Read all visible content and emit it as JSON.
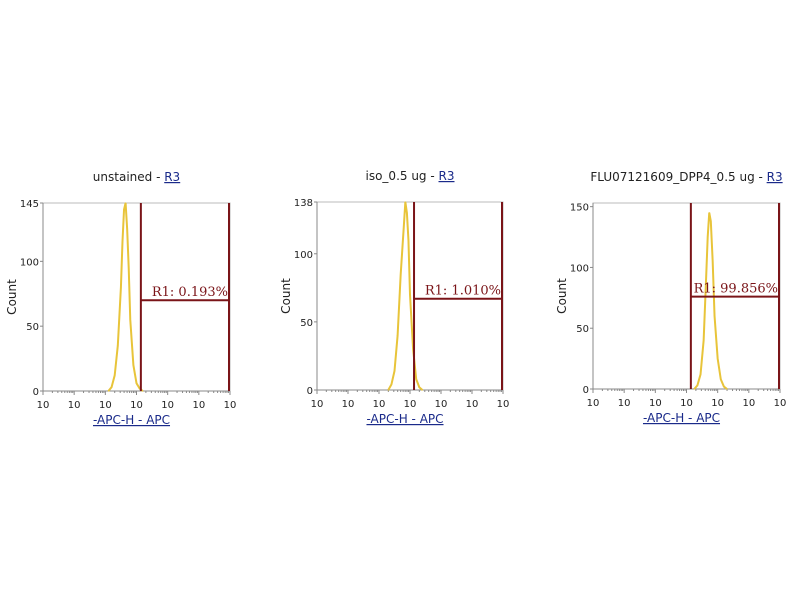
{
  "colors": {
    "histogram": "#e8c43a",
    "gate": "#7a1418",
    "axis": "#888888",
    "link": "#1a2a8a"
  },
  "chart_data": [
    {
      "type": "histogram",
      "title": "unstained - ",
      "title_link": "R3",
      "xlabel": "-APC-H - APC",
      "ylabel": "Count",
      "x_scale": "log",
      "xlim_decades": [
        0,
        6
      ],
      "xtick_labels": [
        "10",
        "10",
        "10",
        "10",
        "10",
        "10",
        "10"
      ],
      "ylim": [
        0,
        145
      ],
      "yticks": [
        0,
        50,
        100,
        145
      ],
      "gate": {
        "name": "R1",
        "label": "R1: 0.193%",
        "lo_decade": 3.14,
        "hi_decade": 6,
        "level": 70
      },
      "points": [
        [
          2.1,
          0
        ],
        [
          2.2,
          3
        ],
        [
          2.3,
          12
        ],
        [
          2.4,
          35
        ],
        [
          2.5,
          80
        ],
        [
          2.55,
          115
        ],
        [
          2.6,
          140
        ],
        [
          2.65,
          145
        ],
        [
          2.7,
          125
        ],
        [
          2.75,
          95
        ],
        [
          2.8,
          55
        ],
        [
          2.9,
          20
        ],
        [
          3.0,
          6
        ],
        [
          3.1,
          2
        ],
        [
          3.2,
          0
        ]
      ]
    },
    {
      "type": "histogram",
      "title": "iso_0.5 ug - ",
      "title_link": "R3",
      "xlabel": "-APC-H - APC",
      "ylabel": "Count",
      "x_scale": "log",
      "xlim_decades": [
        0,
        6
      ],
      "xtick_labels": [
        "10",
        "10",
        "10",
        "10",
        "10",
        "10",
        "10"
      ],
      "ylim": [
        0,
        138
      ],
      "yticks": [
        0,
        50,
        100,
        138
      ],
      "gate": {
        "name": "R1",
        "label": "R1: 1.010%",
        "lo_decade": 3.13,
        "hi_decade": 6,
        "level": 67
      },
      "points": [
        [
          2.3,
          0
        ],
        [
          2.4,
          4
        ],
        [
          2.5,
          14
        ],
        [
          2.6,
          40
        ],
        [
          2.7,
          85
        ],
        [
          2.8,
          120
        ],
        [
          2.85,
          138
        ],
        [
          2.9,
          130
        ],
        [
          2.95,
          110
        ],
        [
          3.0,
          70
        ],
        [
          3.1,
          30
        ],
        [
          3.2,
          8
        ],
        [
          3.3,
          2
        ],
        [
          3.4,
          0
        ]
      ]
    },
    {
      "type": "histogram",
      "title": "FLU07121609_DPP4_0.5 ug - ",
      "title_link": "R3",
      "xlabel": "-APC-H - APC",
      "ylabel": "Count",
      "x_scale": "log",
      "xlim_decades": [
        0,
        6
      ],
      "xtick_labels": [
        "10",
        "10",
        "10",
        "10",
        "10",
        "10",
        "10"
      ],
      "ylim": [
        0,
        153
      ],
      "yticks": [
        0,
        50,
        100,
        150
      ],
      "gate": {
        "name": "R1",
        "label": "R1: 99.856%",
        "lo_decade": 3.14,
        "hi_decade": 6,
        "level": 76
      },
      "points": [
        [
          3.25,
          0
        ],
        [
          3.35,
          3
        ],
        [
          3.45,
          12
        ],
        [
          3.55,
          40
        ],
        [
          3.62,
          85
        ],
        [
          3.68,
          125
        ],
        [
          3.73,
          145
        ],
        [
          3.78,
          138
        ],
        [
          3.84,
          105
        ],
        [
          3.9,
          60
        ],
        [
          4.0,
          25
        ],
        [
          4.1,
          8
        ],
        [
          4.2,
          2
        ],
        [
          4.3,
          0
        ]
      ]
    }
  ]
}
